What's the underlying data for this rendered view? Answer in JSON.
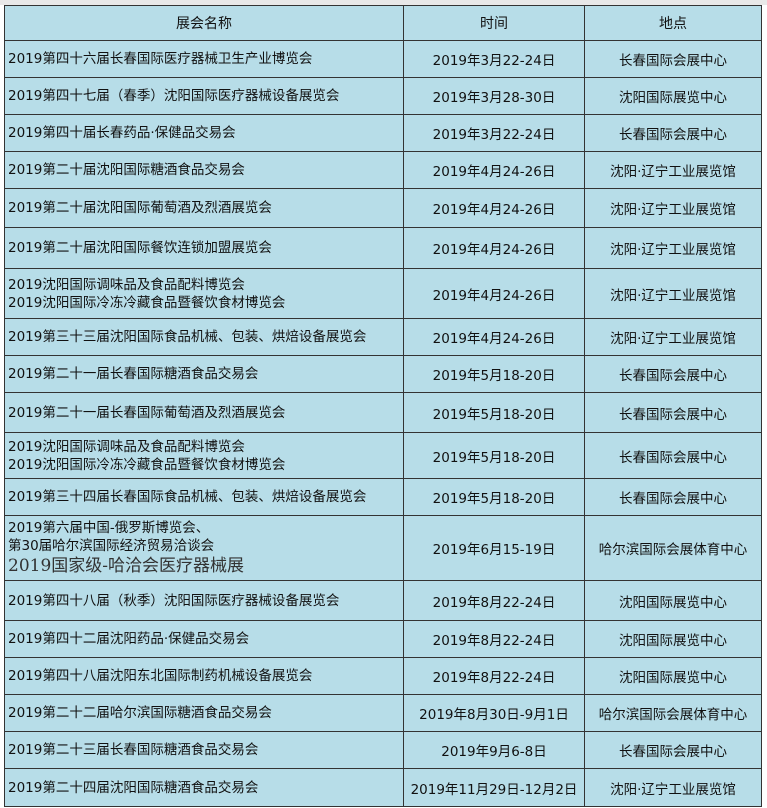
{
  "headers": [
    "展会名称",
    "时间",
    "地点"
  ],
  "rows": [
    {
      "name": [
        "2019第四十六届长春国际医疗器械卫生产业博览会"
      ],
      "time": "2019年3月22-24日",
      "place": "长春国际会展中心"
    },
    {
      "name": [
        "2019第四十七届（春季）沈阳国际医疗器械设备展览会"
      ],
      "time": "2019年3月28-30日",
      "place": "沈阳国际展览中心"
    },
    {
      "name": [
        "2019第四十届长春药品·保健品交易会"
      ],
      "time": "2019年3月22-24日",
      "place": "长春国际会展中心"
    },
    {
      "name": [
        "2019第二十届沈阳国际糖酒食品交易会"
      ],
      "time": "2019年4月24-26日",
      "place": "沈阳·辽宁工业展览馆"
    },
    {
      "name": [
        "2019第二十届沈阳国际葡萄酒及烈酒展览会"
      ],
      "time": "2019年4月24-26日",
      "place": "沈阳·辽宁工业展览馆"
    },
    {
      "name": [
        "2019第二十届沈阳国际餐饮连锁加盟展览会"
      ],
      "time": "2019年4月24-26日",
      "place": "沈阳·辽宁工业展览馆"
    },
    {
      "name": [
        "2019沈阳国际调味品及食品配料博览会",
        "2019沈阳国际冷冻冷藏食品暨餐饮食材博览会"
      ],
      "time": "2019年4月24-26日",
      "place": "沈阳·辽宁工业展览馆"
    },
    {
      "name": [
        "2019第三十三届沈阳国际食品机械、包装、烘焙设备展览会"
      ],
      "time": "2019年4月24-26日",
      "place": "沈阳·辽宁工业展览馆"
    },
    {
      "name": [
        "2019第二十一届长春国际糖酒食品交易会"
      ],
      "time": "2019年5月18-20日",
      "place": "长春国际会展中心"
    },
    {
      "name": [
        "2019第二十一届长春国际葡萄酒及烈酒展览会"
      ],
      "time": "2019年5月18-20日",
      "place": "长春国际会展中心"
    },
    {
      "name": [
        "2019沈阳国际调味品及食品配料博览会",
        "2019沈阳国际冷冻冷藏食品暨餐饮食材博览会"
      ],
      "time": "2019年5月18-20日",
      "place": "长春国际会展中心"
    },
    {
      "name": [
        "2019第三十四届长春国际食品机械、包装、烘焙设备展览会"
      ],
      "time": "2019年5月18-20日",
      "place": "长春国际会展中心"
    },
    {
      "name": [
        "2019第六届中国-俄罗斯博览会、",
        "第30届哈尔滨国际经济贸易洽谈会"
      ],
      "extra": "2019国家级-哈洽会医疗器械展",
      "time": "2019年6月15-19日",
      "place": "哈尔滨国际会展体育中心"
    },
    {
      "name": [
        "2019第四十八届（秋季）沈阳国际医疗器械设备展览会"
      ],
      "time": "2019年8月22-24日",
      "place": "沈阳国际展览中心"
    },
    {
      "name": [
        "2019第四十二届沈阳药品·保健品交易会"
      ],
      "time": "2019年8月22-24日",
      "place": "沈阳国际展览中心"
    },
    {
      "name": [
        "2019第四十八届沈阳东北国际制药机械设备展览会"
      ],
      "time": "2019年8月22-24日",
      "place": "沈阳国际展览中心"
    },
    {
      "name": [
        "2019第二十二届哈尔滨国际糖酒食品交易会"
      ],
      "time": "2019年8月30日-9月1日",
      "place": "哈尔滨国际会展体育中心"
    },
    {
      "name": [
        "2019第二十三届长春国际糖酒食品交易会"
      ],
      "time": "2019年9月6-8日",
      "place": "长春国际会展中心"
    },
    {
      "name": [
        "2019第二十四届沈阳国际糖酒食品交易会"
      ],
      "time": "2019年11月29日-12月2日",
      "place": "沈阳·辽宁工业展览馆"
    }
  ]
}
